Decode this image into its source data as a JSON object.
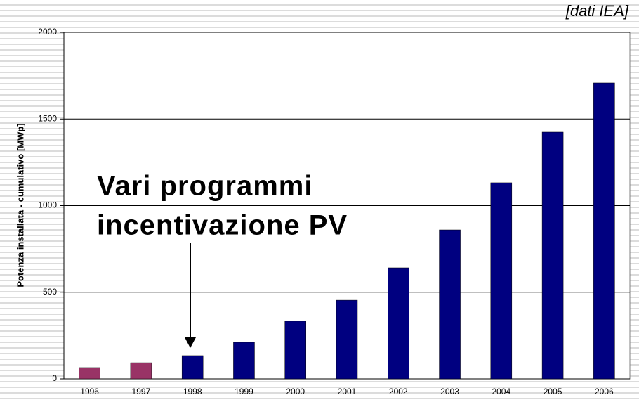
{
  "chart_data": {
    "type": "bar",
    "source_note": "[dati IEA]",
    "ylabel": "Potenza installata - cumulativo [MWp]",
    "annotation": [
      "Vari programmi",
      "incentivazione PV"
    ],
    "categories": [
      "1996",
      "1997",
      "1998",
      "1999",
      "2000",
      "2001",
      "2002",
      "2003",
      "2004",
      "2005",
      "2006"
    ],
    "values": [
      65,
      93,
      134,
      211,
      333,
      454,
      641,
      860,
      1132,
      1424,
      1708
    ],
    "colors": [
      "#993366",
      "#993366",
      "#000080",
      "#000080",
      "#000080",
      "#000080",
      "#000080",
      "#000080",
      "#000080",
      "#000080",
      "#000080"
    ],
    "ylim": [
      0,
      2000
    ],
    "yticks": [
      0,
      500,
      1000,
      1500,
      2000
    ],
    "grid": true
  }
}
